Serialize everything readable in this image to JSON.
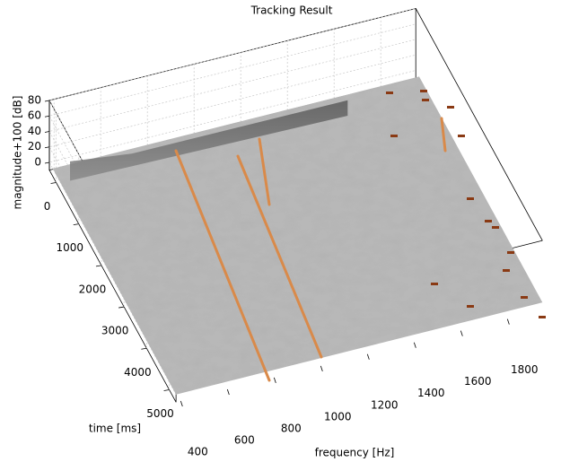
{
  "chart_data": {
    "type": "surface",
    "title": "Tracking Result",
    "x_label": "frequency [Hz]",
    "y_label": "time [ms]",
    "z_label": "magnitude+100 [dB]",
    "xlim": [
      380,
      1950
    ],
    "xticks": [
      400,
      600,
      800,
      1000,
      1200,
      1400,
      1600,
      1800
    ],
    "ylim": [
      -300,
      5300
    ],
    "yticks": [
      0,
      1000,
      2000,
      3000,
      4000,
      5000
    ],
    "zlim": [
      -10,
      80
    ],
    "zticks": [
      0,
      20,
      40,
      60,
      80
    ],
    "grid": true
  }
}
